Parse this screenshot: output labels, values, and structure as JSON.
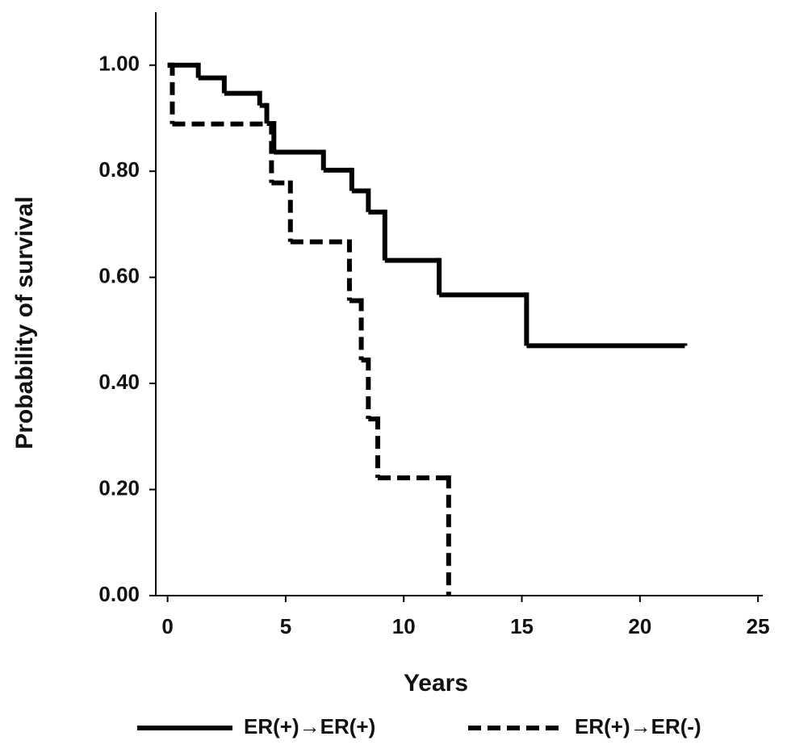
{
  "chart_data": {
    "type": "step",
    "x_label": "Years",
    "y_label": "Probability of survival",
    "xlim": [
      -0.5,
      25.2
    ],
    "ylim": [
      0,
      1.1
    ],
    "xticks": [
      0,
      5,
      10,
      15,
      20,
      25
    ],
    "yticks": [
      {
        "value": 0,
        "label": "0.00"
      },
      {
        "value": 0.2,
        "label": "0.20"
      },
      {
        "value": 0.4,
        "label": "0.40"
      },
      {
        "value": 0.6,
        "label": "0.60"
      },
      {
        "value": 0.8,
        "label": "0.80"
      },
      {
        "value": 1,
        "label": "1.00"
      }
    ],
    "legend": "bottom",
    "series": [
      {
        "name": "ER(+)→ER(+)",
        "color": "#000000",
        "dash": false,
        "x": [
          0,
          1.3,
          2.4,
          3.9,
          4.2,
          4.5,
          6.6,
          7.8,
          8.5,
          9.2,
          11.5,
          15.2,
          21.9
        ],
        "values": [
          1.0,
          0.976,
          0.947,
          0.924,
          0.89,
          0.836,
          0.802,
          0.763,
          0.723,
          0.632,
          0.567,
          0.471,
          0.471
        ]
      },
      {
        "name": "ER(+)→ER(-)",
        "color": "#000000",
        "dash": true,
        "x": [
          0,
          0.2,
          4.4,
          5.2,
          7.7,
          8.2,
          8.5,
          8.9,
          11.9
        ],
        "values": [
          1.0,
          0.889,
          0.778,
          0.667,
          0.556,
          0.444,
          0.333,
          0.222,
          0
        ]
      }
    ]
  }
}
